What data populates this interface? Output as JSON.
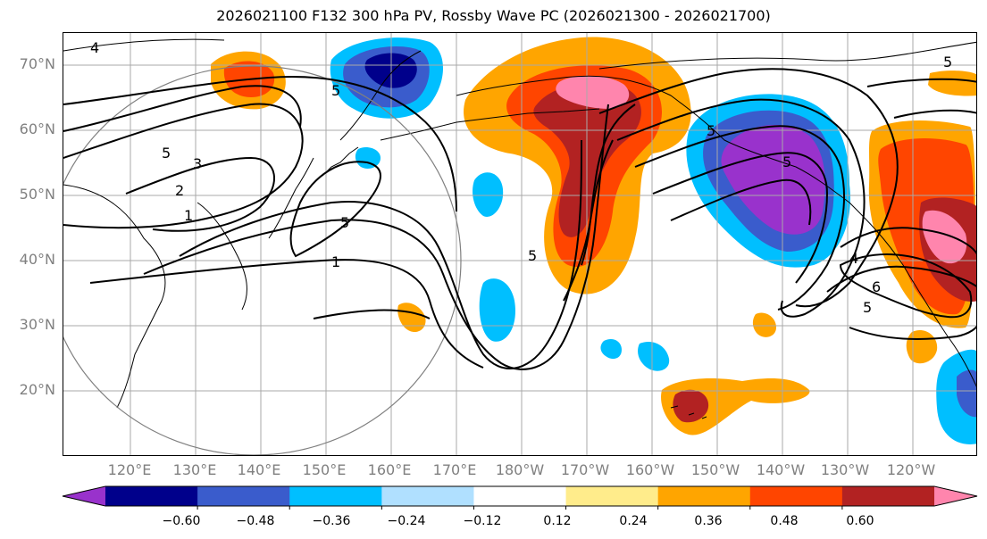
{
  "title": "2026021100 F132 300 hPa PV, Rossby Wave PC (2026021300 - 2026021700)",
  "lat_labels": [
    "70°N",
    "60°N",
    "50°N",
    "40°N",
    "30°N",
    "20°N"
  ],
  "lon_labels": [
    "120°E",
    "130°E",
    "140°E",
    "150°E",
    "160°E",
    "170°E",
    "180°W",
    "170°W",
    "160°W",
    "150°W",
    "140°W",
    "130°W",
    "120°W"
  ],
  "contour_labels": [
    "4",
    "5",
    "5",
    "3",
    "2",
    "1",
    "5",
    "1",
    "5",
    "5",
    "4",
    "5",
    "6",
    "5",
    "5"
  ],
  "colorbar": {
    "ticks": [
      "−0.60",
      "−0.48",
      "−0.36",
      "−0.24",
      "−0.12",
      "0.12",
      "0.24",
      "0.36",
      "0.48",
      "0.60"
    ],
    "colors": [
      "#9932cc",
      "#00008b",
      "#3a5ccc",
      "#00bfff",
      "#b0e0ff",
      "#ffffff",
      "#ffec8b",
      "#ffa500",
      "#ff4500",
      "#b22222",
      "#ff85ad"
    ]
  },
  "icons": {
    "great_circle": "range-circle-icon"
  }
}
